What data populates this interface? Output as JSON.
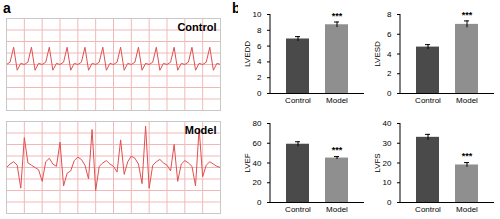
{
  "panel_labels": [
    "a",
    "b"
  ],
  "chart_data": [
    {
      "type": "line",
      "title": "Control",
      "color": "#e05050",
      "grid": true,
      "tick_labels": false,
      "x": [
        0,
        1,
        2,
        3,
        4,
        5,
        6,
        7,
        8,
        9,
        10,
        11,
        12,
        13,
        14,
        15,
        16,
        17,
        18,
        19,
        20,
        21,
        22,
        23,
        24,
        25,
        26,
        27,
        28,
        29,
        30,
        31,
        32,
        33,
        34,
        35,
        36,
        37,
        38,
        39,
        40,
        41,
        42,
        43,
        44,
        45,
        46,
        47,
        48,
        49,
        50,
        51,
        52,
        53,
        54,
        55,
        56,
        57,
        58,
        59,
        60
      ],
      "values": [
        0,
        0.2,
        1.5,
        -0.5,
        0.1,
        0,
        0.2,
        1.5,
        -0.5,
        0.1,
        0,
        0.2,
        1.5,
        -0.5,
        0.1,
        0,
        0.2,
        1.5,
        -0.5,
        0.1,
        0,
        0.2,
        1.5,
        -0.5,
        0.1,
        0,
        0.2,
        1.5,
        -0.5,
        0.1,
        0,
        0.2,
        1.5,
        -0.5,
        0.1,
        0,
        0.2,
        1.5,
        -0.5,
        0.1,
        0,
        0.2,
        1.5,
        -0.5,
        0.1,
        0,
        0.2,
        1.5,
        -0.5,
        0.1,
        0,
        0.2,
        1.5,
        -0.5,
        0.1,
        0,
        0.2,
        1.5,
        -0.5,
        0.1,
        0
      ],
      "xlim": [
        0,
        60
      ],
      "xticks": [
        0,
        5,
        10,
        15,
        20,
        25,
        30,
        35,
        40,
        45,
        50,
        55,
        60
      ],
      "ylim": [
        -4,
        4
      ],
      "yticks": [
        -4,
        -3,
        -2,
        -1,
        0,
        1,
        2,
        3,
        4
      ]
    },
    {
      "type": "line",
      "title": "Model",
      "color": "#e05050",
      "grid": true,
      "tick_labels": false,
      "x": [
        0,
        1,
        2,
        3,
        4,
        5,
        6,
        7,
        8,
        9,
        10,
        11,
        12,
        13,
        14,
        15,
        16,
        17,
        18,
        19,
        20,
        21,
        22,
        23,
        24,
        25,
        26,
        27,
        28,
        29,
        30,
        31,
        32,
        33,
        34,
        35,
        36,
        37,
        38,
        39,
        40,
        41,
        42,
        43,
        44,
        45,
        46,
        47,
        48,
        49,
        50,
        51,
        52,
        53,
        54,
        55,
        56,
        57,
        58,
        59,
        60
      ],
      "values": [
        0,
        0.3,
        0.5,
        0.2,
        -1.8,
        2.6,
        0.4,
        0.2,
        0,
        -0.2,
        -1.2,
        0.5,
        0.8,
        0.3,
        0.1,
        2.2,
        -1.6,
        -0.5,
        -0.3,
        0.6,
        0.9,
        0.7,
        0.2,
        -1.0,
        3.3,
        -2.0,
        0.1,
        0.4,
        0.6,
        0.3,
        0.1,
        -0.4,
        2.4,
        -0.6,
        0.5,
        1.0,
        0.8,
        0.3,
        -1.4,
        3.6,
        -1.8,
        0.2,
        0.5,
        0.7,
        0.4,
        0.2,
        -0.3,
        2.0,
        -1.2,
        0.3,
        0.6,
        0.4,
        0.1,
        -1.6,
        3.4,
        -0.8,
        0.2,
        0.5,
        0.3,
        0.1,
        0
      ],
      "xlim": [
        0,
        60
      ],
      "xticks": [
        0,
        5,
        10,
        15,
        20,
        25,
        30,
        35,
        40,
        45,
        50,
        55,
        60
      ],
      "ylim": [
        -4,
        4
      ],
      "yticks": [
        -4,
        -3,
        -2,
        -1,
        0,
        1,
        2,
        3,
        4
      ]
    },
    {
      "type": "bar",
      "y_label": "LVEDD",
      "categories": [
        "Control",
        "Model"
      ],
      "values": [
        6.9,
        8.7
      ],
      "errors": [
        0.3,
        0.35
      ],
      "colors": [
        "#4a4a4a",
        "#8f8f8f"
      ],
      "ylim": [
        0,
        10
      ],
      "yticks": [
        0,
        2,
        4,
        6,
        8,
        10
      ],
      "annotations": [
        {
          "category": "Model",
          "text": "***"
        }
      ]
    },
    {
      "type": "bar",
      "y_label": "LVESD",
      "categories": [
        "Control",
        "Model"
      ],
      "values": [
        4.7,
        7.0
      ],
      "errors": [
        0.25,
        0.35
      ],
      "colors": [
        "#4a4a4a",
        "#8f8f8f"
      ],
      "ylim": [
        0,
        8
      ],
      "yticks": [
        0,
        2,
        4,
        6,
        8
      ],
      "annotations": [
        {
          "category": "Model",
          "text": "***"
        }
      ]
    },
    {
      "type": "bar",
      "y_label": "LVEF",
      "categories": [
        "Control",
        "Model"
      ],
      "values": [
        59,
        45
      ],
      "errors": [
        2.5,
        1.5
      ],
      "colors": [
        "#4a4a4a",
        "#8f8f8f"
      ],
      "ylim": [
        0,
        80
      ],
      "yticks": [
        0,
        20,
        40,
        60,
        80
      ],
      "annotations": [
        {
          "category": "Model",
          "text": "***"
        }
      ]
    },
    {
      "type": "bar",
      "y_label": "LVFS",
      "categories": [
        "Control",
        "Model"
      ],
      "values": [
        33,
        19
      ],
      "errors": [
        1.5,
        1.2
      ],
      "colors": [
        "#4a4a4a",
        "#8f8f8f"
      ],
      "ylim": [
        0,
        40
      ],
      "yticks": [
        0,
        10,
        20,
        30,
        40
      ],
      "annotations": [
        {
          "category": "Model",
          "text": "***"
        }
      ]
    }
  ]
}
